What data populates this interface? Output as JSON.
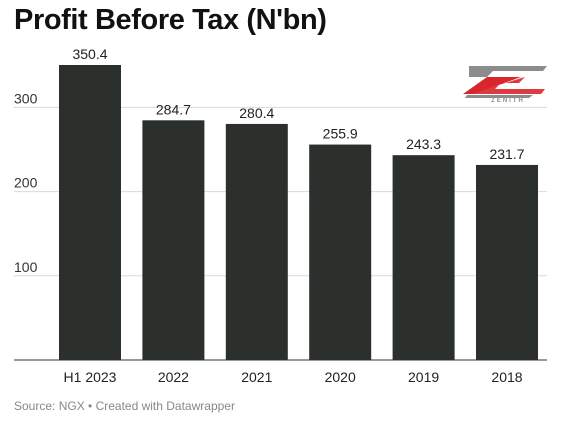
{
  "chart_data": {
    "type": "bar",
    "title": "Profit Before Tax (N'bn)",
    "categories": [
      "H1 2023",
      "2022",
      "2021",
      "2020",
      "2019",
      "2018"
    ],
    "values": [
      350.4,
      284.7,
      280.4,
      255.9,
      243.3,
      231.7
    ],
    "data_labels": [
      "350.4",
      "284.7",
      "280.4",
      "255.9",
      "243.3",
      "231.7"
    ],
    "yticks": [
      100,
      200,
      300
    ],
    "ytick_labels": [
      "100",
      "200",
      "300"
    ],
    "ylim": [
      0,
      360
    ],
    "grid": true,
    "bar_color": "#2c302d",
    "source": "Source: NGX • Created with Datawrapper"
  },
  "logo": {
    "text": "ZENITH",
    "primary_color": "#d9262c",
    "secondary_color": "#8c8c8c"
  }
}
